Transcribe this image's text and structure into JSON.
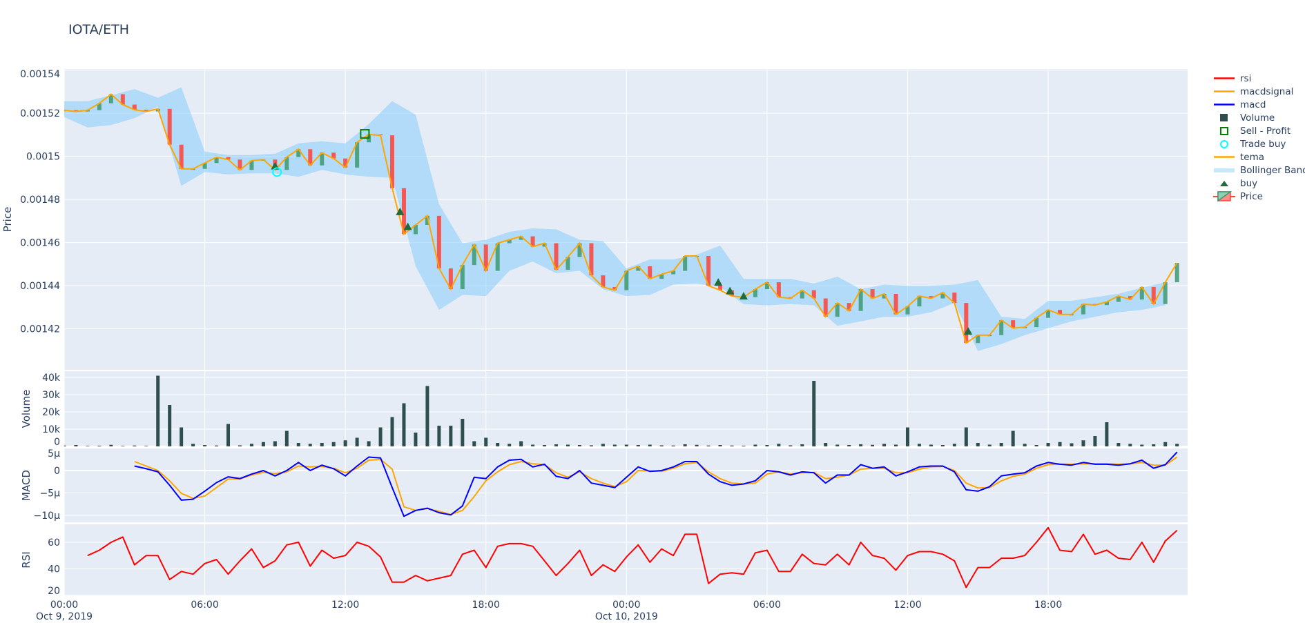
{
  "chart_data": {
    "type": "candlestick",
    "title": "IOTA/ETH",
    "colors": {
      "plot_bg": "#E5ECF6",
      "grid": "#FFFFFF",
      "increasing": "#3D9970",
      "decreasing": "#FF4136",
      "tema": "#FFA500",
      "bollinger": "rgba(135,206,250,0.55)",
      "buy": "#1E6B3C",
      "trade_buy": "#00FFFF",
      "sell_profit": "#008000",
      "volume": "#2F4F4F",
      "macd": "#0000FF",
      "macdsignal": "#FFA500",
      "rsi": "#FF0000"
    },
    "legend": [
      {
        "label": "rsi",
        "symbol": "line",
        "color": "#FF0000"
      },
      {
        "label": "macdsignal",
        "symbol": "line",
        "color": "#FFA500"
      },
      {
        "label": "macd",
        "symbol": "line",
        "color": "#0000FF"
      },
      {
        "label": "Volume",
        "symbol": "square",
        "color": "#2F4F4F"
      },
      {
        "label": "Sell - Profit",
        "symbol": "square-open",
        "color": "#008000"
      },
      {
        "label": "Trade buy",
        "symbol": "circle-open",
        "color": "#00FFFF"
      },
      {
        "label": "tema",
        "symbol": "line",
        "color": "#FFA500"
      },
      {
        "label": "Bollinger Band",
        "symbol": "band",
        "color": "#C9E8FA"
      },
      {
        "label": "buy",
        "symbol": "triangle-up",
        "color": "#1E6B3C"
      },
      {
        "label": "Price",
        "symbol": "candle",
        "color": "#3D9970"
      }
    ],
    "xticks": [
      "2019-10-09 00:00",
      "2019-10-09 06:00",
      "2019-10-09 12:00",
      "2019-10-09 18:00",
      "2019-10-10 00:00",
      "2019-10-10 06:00",
      "2019-10-10 12:00",
      "2019-10-10 18:00"
    ],
    "xticklabels": [
      [
        "00:00",
        "Oct 9, 2019"
      ],
      [
        "06:00",
        ""
      ],
      [
        "12:00",
        ""
      ],
      [
        "18:00",
        ""
      ],
      [
        "00:00",
        "Oct 10, 2019"
      ],
      [
        "06:00",
        ""
      ],
      [
        "12:00",
        ""
      ],
      [
        "18:00",
        ""
      ]
    ],
    "x": [
      "2019-10-09 00:00",
      "2019-10-09 00:30",
      "2019-10-09 01:00",
      "2019-10-09 01:30",
      "2019-10-09 02:00",
      "2019-10-09 02:30",
      "2019-10-09 03:00",
      "2019-10-09 03:30",
      "2019-10-09 04:00",
      "2019-10-09 04:30",
      "2019-10-09 05:00",
      "2019-10-09 05:30",
      "2019-10-09 06:00",
      "2019-10-09 06:30",
      "2019-10-09 07:00",
      "2019-10-09 07:30",
      "2019-10-09 08:00",
      "2019-10-09 08:30",
      "2019-10-09 09:00",
      "2019-10-09 09:30",
      "2019-10-09 10:00",
      "2019-10-09 10:30",
      "2019-10-09 11:00",
      "2019-10-09 11:30",
      "2019-10-09 12:00",
      "2019-10-09 12:30",
      "2019-10-09 13:00",
      "2019-10-09 13:30",
      "2019-10-09 14:00",
      "2019-10-09 14:30",
      "2019-10-09 15:00",
      "2019-10-09 15:30",
      "2019-10-09 16:00",
      "2019-10-09 16:30",
      "2019-10-09 17:00",
      "2019-10-09 17:30",
      "2019-10-09 18:00",
      "2019-10-09 18:30",
      "2019-10-09 19:00",
      "2019-10-09 19:30",
      "2019-10-09 20:00",
      "2019-10-09 20:30",
      "2019-10-09 21:00",
      "2019-10-09 21:30",
      "2019-10-09 22:00",
      "2019-10-09 22:30",
      "2019-10-09 23:00",
      "2019-10-09 23:30",
      "2019-10-10 00:00",
      "2019-10-10 00:30",
      "2019-10-10 01:00",
      "2019-10-10 01:30",
      "2019-10-10 02:00",
      "2019-10-10 02:30",
      "2019-10-10 03:00",
      "2019-10-10 03:30",
      "2019-10-10 04:00",
      "2019-10-10 04:30",
      "2019-10-10 05:00",
      "2019-10-10 05:30",
      "2019-10-10 06:00",
      "2019-10-10 06:30",
      "2019-10-10 07:00",
      "2019-10-10 07:30",
      "2019-10-10 08:00",
      "2019-10-10 08:30",
      "2019-10-10 09:00",
      "2019-10-10 09:30",
      "2019-10-10 10:00",
      "2019-10-10 10:30",
      "2019-10-10 11:00",
      "2019-10-10 11:30",
      "2019-10-10 12:00",
      "2019-10-10 12:30",
      "2019-10-10 13:00",
      "2019-10-10 13:30",
      "2019-10-10 14:00",
      "2019-10-10 14:30",
      "2019-10-10 15:00",
      "2019-10-10 15:30",
      "2019-10-10 16:00",
      "2019-10-10 16:30",
      "2019-10-10 17:00",
      "2019-10-10 17:30",
      "2019-10-10 18:00",
      "2019-10-10 18:30",
      "2019-10-10 19:00",
      "2019-10-10 19:30",
      "2019-10-10 20:00",
      "2019-10-10 20:30",
      "2019-10-10 21:00",
      "2019-10-10 21:30",
      "2019-10-10 22:00",
      "2019-10-10 22:30",
      "2019-10-10 23:00",
      "2019-10-10 23:30"
    ],
    "price": {
      "ylabel": "Price",
      "ylim": [
        0.001401,
        0.0015405
      ],
      "ticks": [
        0.00142,
        0.00144,
        0.00146,
        0.00148,
        0.0015,
        0.00152,
        0.00154
      ],
      "ticklabels": [
        "0.00142",
        "0.00144",
        "0.00146",
        "0.00148",
        "0.0015",
        "0.00152",
        "0.00154"
      ],
      "close": [
        0.0015214,
        0.0015208,
        0.0015214,
        0.0015246,
        0.0015288,
        0.001524,
        0.0015216,
        0.0015208,
        0.001522,
        0.0015054,
        0.0014942,
        0.0014942,
        0.0014969,
        0.0014996,
        0.0014985,
        0.0014937,
        0.001498,
        0.0014985,
        0.0014937,
        0.0014996,
        0.0015033,
        0.0014958,
        0.0015017,
        0.001499,
        0.0014948,
        0.0015065,
        0.0015102,
        0.0015097,
        0.0014852,
        0.0014639,
        0.0014682,
        0.0014724,
        0.001448,
        0.0014384,
        0.0014496,
        0.0014591,
        0.0014469,
        0.0014597,
        0.0014613,
        0.0014629,
        0.0014581,
        0.0014597,
        0.0014474,
        0.0014533,
        0.0014597,
        0.0014448,
        0.0014394,
        0.0014379,
        0.0014469,
        0.001449,
        0.0014432,
        0.0014453,
        0.0014469,
        0.0014538,
        0.0014538,
        0.00144,
        0.0014379,
        0.0014352,
        0.0014347,
        0.0014384,
        0.0014416,
        0.0014347,
        0.0014341,
        0.0014379,
        0.0014341,
        0.0014256,
        0.001432,
        0.0014283,
        0.0014384,
        0.0014341,
        0.0014362,
        0.0014267,
        0.0014304,
        0.0014352,
        0.0014341,
        0.0014368,
        0.001432,
        0.0014134,
        0.0014171,
        0.0014171,
        0.001424,
        0.0014203,
        0.0014208,
        0.0014251,
        0.0014288,
        0.0014267,
        0.0014267,
        0.0014315,
        0.001431,
        0.0014325,
        0.0014352,
        0.0014336,
        0.0014394,
        0.0014315,
        0.0014416,
        0.0014506
      ],
      "tema": [
        0.0015214,
        0.0015208,
        0.0015214,
        0.0015246,
        0.0015288,
        0.001524,
        0.0015216,
        0.0015208,
        0.001522,
        0.0015054,
        0.0014942,
        0.0014942,
        0.0014969,
        0.0014996,
        0.0014985,
        0.0014937,
        0.001498,
        0.0014985,
        0.0014937,
        0.0014996,
        0.0015033,
        0.0014958,
        0.0015017,
        0.001499,
        0.0014948,
        0.0015065,
        0.0015102,
        0.0015097,
        0.0014852,
        0.0014639,
        0.0014682,
        0.0014724,
        0.001448,
        0.0014384,
        0.0014496,
        0.0014591,
        0.0014469,
        0.0014597,
        0.0014613,
        0.0014629,
        0.0014581,
        0.0014597,
        0.0014474,
        0.0014533,
        0.0014597,
        0.0014448,
        0.0014394,
        0.0014379,
        0.0014469,
        0.001449,
        0.0014432,
        0.0014453,
        0.0014469,
        0.0014538,
        0.0014538,
        0.00144,
        0.0014379,
        0.0014352,
        0.0014347,
        0.0014384,
        0.0014416,
        0.0014347,
        0.0014341,
        0.0014379,
        0.0014341,
        0.0014256,
        0.001432,
        0.0014283,
        0.0014384,
        0.0014341,
        0.0014362,
        0.0014267,
        0.0014304,
        0.0014352,
        0.0014341,
        0.0014368,
        0.001432,
        0.0014134,
        0.0014171,
        0.0014171,
        0.001424,
        0.0014203,
        0.0014208,
        0.0014251,
        0.0014288,
        0.0014267,
        0.0014267,
        0.0014315,
        0.001431,
        0.0014325,
        0.0014352,
        0.0014336,
        0.0014394,
        0.0014315,
        0.0014416,
        0.0014506
      ],
      "bb_x": [
        "2019-10-09 00:00",
        "2019-10-09 01:00",
        "2019-10-09 02:00",
        "2019-10-09 03:00",
        "2019-10-09 04:00",
        "2019-10-09 05:00",
        "2019-10-09 06:00",
        "2019-10-09 07:00",
        "2019-10-09 08:00",
        "2019-10-09 09:00",
        "2019-10-09 10:00",
        "2019-10-09 11:00",
        "2019-10-09 12:00",
        "2019-10-09 13:00",
        "2019-10-09 14:00",
        "2019-10-09 15:00",
        "2019-10-09 16:00",
        "2019-10-09 17:00",
        "2019-10-09 18:00",
        "2019-10-09 19:00",
        "2019-10-09 20:00",
        "2019-10-09 21:00",
        "2019-10-09 22:00",
        "2019-10-09 23:00",
        "2019-10-10 00:00",
        "2019-10-10 01:00",
        "2019-10-10 02:00",
        "2019-10-10 03:00",
        "2019-10-10 04:00",
        "2019-10-10 05:00",
        "2019-10-10 06:00",
        "2019-10-10 07:00",
        "2019-10-10 08:00",
        "2019-10-10 09:00",
        "2019-10-10 10:00",
        "2019-10-10 11:00",
        "2019-10-10 12:00",
        "2019-10-10 13:00",
        "2019-10-10 14:00",
        "2019-10-10 15:00",
        "2019-10-10 16:00",
        "2019-10-10 17:00",
        "2019-10-10 18:00",
        "2019-10-10 19:00",
        "2019-10-10 20:00",
        "2019-10-10 21:00",
        "2019-10-10 22:00",
        "2019-10-10 23:00"
      ],
      "bb_upper": [
        0.0015256,
        0.0015256,
        0.0015283,
        0.0015312,
        0.0015272,
        0.001532,
        0.0015022,
        0.0015006,
        0.0015006,
        0.0015012,
        0.001506,
        0.001507,
        0.001506,
        0.001515,
        0.0015256,
        0.0015193,
        0.0014778,
        0.0014597,
        0.0014613,
        0.001465,
        0.0014666,
        0.0014661,
        0.0014613,
        0.0014607,
        0.001448,
        0.0014522,
        0.0014522,
        0.0014544,
        0.0014586,
        0.0014432,
        0.0014432,
        0.0014432,
        0.001441,
        0.0014442,
        0.0014384,
        0.0014405,
        0.00144,
        0.00144,
        0.0014405,
        0.0014426,
        0.0014256,
        0.0014246,
        0.001433,
        0.001433,
        0.0014347,
        0.0014363,
        0.001439,
        0.0014416
      ],
      "bb_lower": [
        0.0015182,
        0.0015134,
        0.0015145,
        0.0015177,
        0.001523,
        0.0014863,
        0.0014927,
        0.0014916,
        0.0014921,
        0.0014921,
        0.0014905,
        0.0014937,
        0.0014916,
        0.0014905,
        0.00149,
        0.001449,
        0.0014288,
        0.0014357,
        0.0014352,
        0.0014469,
        0.0014512,
        0.0014458,
        0.0014469,
        0.0014384,
        0.0014352,
        0.0014357,
        0.0014405,
        0.001441,
        0.0014394,
        0.0014315,
        0.0014309,
        0.0014315,
        0.0014309,
        0.0014214,
        0.0014235,
        0.0014256,
        0.0014256,
        0.0014277,
        0.001432,
        0.0014097,
        0.0014129,
        0.0014171,
        0.0014203,
        0.0014235,
        0.0014256,
        0.0014277,
        0.0014288,
        0.0014309
      ],
      "buy": [
        {
          "x": "2019-10-09 09:00",
          "y": 0.0014955
        },
        {
          "x": "2019-10-09 14:20",
          "y": 0.0014743
        },
        {
          "x": "2019-10-09 14:40",
          "y": 0.0014674
        },
        {
          "x": "2019-10-10 03:55",
          "y": 0.0014416
        },
        {
          "x": "2019-10-10 04:25",
          "y": 0.0014376
        },
        {
          "x": "2019-10-10 05:00",
          "y": 0.0014352
        },
        {
          "x": "2019-10-10 14:35",
          "y": 0.0014189
        }
      ],
      "trade_buy": [
        {
          "x": "2019-10-09 09:05",
          "y": 0.0014927
        }
      ],
      "sell_profit": [
        {
          "x": "2019-10-09 12:50",
          "y": 0.0015104
        }
      ]
    },
    "volume": {
      "ylabel": "Volume",
      "ylim": [
        0,
        43600
      ],
      "ticks": [
        0,
        10000,
        20000,
        30000,
        40000
      ],
      "ticklabels": [
        "0",
        "10k",
        "20k",
        "30k",
        "40k"
      ],
      "values": [
        500,
        800,
        300,
        400,
        900,
        300,
        500,
        300,
        41000,
        24000,
        11000,
        1500,
        800,
        500,
        13000,
        600,
        1500,
        2500,
        3000,
        9000,
        2000,
        1500,
        2000,
        2500,
        3500,
        5000,
        3000,
        11000,
        17000,
        25000,
        8000,
        35000,
        12000,
        12000,
        16000,
        3000,
        5000,
        2000,
        1500,
        3000,
        1000,
        800,
        1200,
        1000,
        800,
        600,
        1500,
        1000,
        1000,
        800,
        1000,
        600,
        500,
        1200,
        900,
        500,
        800,
        500,
        400,
        1000,
        800,
        1500,
        600,
        1200,
        38000,
        2000,
        1000,
        800,
        1200,
        900,
        1500,
        1000,
        11000,
        1500,
        1000,
        800,
        1500,
        11000,
        2000,
        1000,
        2000,
        9000,
        1500,
        800,
        2000,
        2500,
        1800,
        3500,
        6000,
        14000,
        2000,
        1500,
        1000,
        1200,
        2500,
        1500
      ]
    },
    "macd": {
      "ylabel": "MACD",
      "ylim": [
        -1.154e-05,
        4.92e-06
      ],
      "ticks": [
        -1e-05,
        -5e-06,
        0,
        5e-06
      ],
      "ticklabels": [
        "−10µ",
        "−5µ",
        "0",
        "5µ"
      ],
      "macd": [
        null,
        null,
        null,
        null,
        null,
        null,
        1e-06,
        4e-07,
        -3e-07,
        -3.3e-06,
        -6.6e-06,
        -6.4e-06,
        -4.6e-06,
        -2.7e-06,
        -1.4e-06,
        -1.8e-06,
        -8e-07,
        0,
        -1.2e-06,
        0,
        1.8e-06,
        0,
        1.2e-06,
        4e-07,
        -1.2e-06,
        1e-06,
        3e-06,
        2.8e-06,
        -3.8e-06,
        -1.02e-05,
        -8.9e-06,
        -8.4e-06,
        -9.4e-06,
        -9.9e-06,
        -7.9e-06,
        -1.5e-06,
        -1.8e-06,
        8e-07,
        2.3e-06,
        2.5e-06,
        8e-07,
        1.4e-06,
        -1.3e-06,
        -1.8e-06,
        0,
        -2.8e-06,
        -3.3e-06,
        -3.8e-06,
        -1.5e-06,
        8e-07,
        -2e-07,
        0,
        8e-07,
        2e-06,
        2e-06,
        -8e-07,
        -2.5e-06,
        -3.3e-06,
        -3e-06,
        -2.3e-06,
        0,
        -3e-07,
        -1e-06,
        -3e-07,
        -5e-07,
        -2.8e-06,
        -1e-06,
        -1e-06,
        1.3e-06,
        5e-07,
        8e-07,
        -1.2e-06,
        -3e-07,
        8e-07,
        1e-06,
        1e-06,
        -3e-07,
        -4.3e-06,
        -4.6e-06,
        -3.6e-06,
        -1.2e-06,
        -8e-07,
        -5e-07,
        1e-06,
        1.8e-06,
        1.4e-06,
        1.2e-06,
        1.8e-06,
        1.4e-06,
        1.4e-06,
        1.2e-06,
        1.5e-06,
        2.3e-06,
        5e-07,
        1.3e-06,
        4.1e-06
      ],
      "macdsignal": [
        null,
        null,
        null,
        null,
        null,
        null,
        2e-06,
        1e-06,
        0,
        -2.3e-06,
        -5.1e-06,
        -6.2e-06,
        -5.7e-06,
        -3.8e-06,
        -1.9e-06,
        -1.9e-06,
        -1e-06,
        -4e-07,
        -7e-07,
        -3e-07,
        1e-06,
        8e-07,
        9e-07,
        5e-07,
        -5e-07,
        5e-07,
        2.3e-06,
        2.5e-06,
        3e-07,
        -8.1e-06,
        -8.9e-06,
        -8.5e-06,
        -9.1e-06,
        -9.8e-06,
        -8.9e-06,
        -5.8e-06,
        -2.3e-06,
        -3e-07,
        1.3e-06,
        2e-06,
        1.5e-06,
        1.3e-06,
        -5e-07,
        -1.5e-06,
        -3e-07,
        -1.8e-06,
        -2.8e-06,
        -3.6e-06,
        -2.5e-06,
        0,
        -1e-07,
        -2e-07,
        5e-07,
        1.5e-06,
        1.8e-06,
        -3e-07,
        -1.8e-06,
        -2.8e-06,
        -3e-06,
        -2.8e-06,
        -8e-07,
        -3e-07,
        -8e-07,
        -5e-07,
        -4e-07,
        -1.8e-06,
        -1.5e-06,
        -1e-06,
        3e-07,
        5e-07,
        5e-07,
        -5e-07,
        -5e-07,
        3e-07,
        8e-07,
        9e-07,
        0,
        -2.8e-06,
        -3.9e-06,
        -3.8e-06,
        -2.3e-06,
        -1.3e-06,
        -8e-07,
        5e-07,
        1.3e-06,
        1.4e-06,
        1.4e-06,
        1.5e-06,
        1.5e-06,
        1.5e-06,
        1.4e-06,
        1.5e-06,
        1.8e-06,
        1.2e-06,
        1.2e-06,
        3e-06
      ]
    },
    "rsi": {
      "ylabel": "RSI",
      "ylim": [
        20,
        73.5
      ],
      "ticks": [
        20,
        40,
        60
      ],
      "ticklabels": [
        "20",
        "40",
        "60"
      ],
      "values": [
        null,
        null,
        50,
        54,
        60,
        64,
        43,
        50,
        50,
        32,
        38,
        36,
        44,
        47,
        36,
        46,
        55,
        41,
        46,
        58,
        60,
        42,
        54,
        48,
        50,
        60,
        57,
        49,
        30,
        30,
        35,
        31,
        33,
        35,
        51,
        54,
        41,
        57,
        59,
        59,
        57,
        46,
        35,
        44,
        54,
        35,
        43,
        38,
        49,
        58,
        45,
        55,
        50,
        66,
        66,
        29,
        36,
        37,
        36,
        52,
        54,
        38,
        38,
        51,
        44,
        43,
        51,
        43,
        60,
        50,
        48,
        39,
        50,
        53,
        53,
        51,
        46,
        26,
        41,
        41,
        48,
        48,
        50,
        60,
        71,
        54,
        53,
        66,
        51,
        54,
        48,
        47,
        60,
        45,
        61,
        69
      ]
    }
  }
}
